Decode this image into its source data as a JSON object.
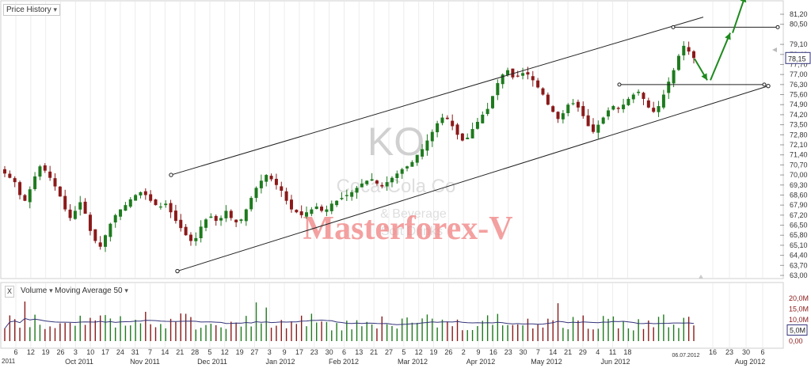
{
  "price_panel": {
    "title": "Price History"
  },
  "watermark": {
    "symbol": "KO",
    "company": "Coca-Cola Co",
    "sector_1": "& Beverage",
    "sector_2": "Soft Drinks",
    "brand": "Masterforex-V"
  },
  "volume_panel": {
    "close_symbol": "X",
    "title": "Volume",
    "indicator": "Moving Average 50"
  },
  "colors": {
    "up": "#1e7a1e",
    "down": "#8b1a1a",
    "accent_arrow": "#1e8a1e",
    "volume_ma": "#33337a",
    "price_box": "#33337a",
    "watermark_brand": "#f08080"
  },
  "chart_data": [
    {
      "type": "candlestick",
      "title": "Price History",
      "series_name": "KO",
      "y_ticks": [
        "81,20",
        "80,50",
        "79,10",
        "78,40",
        "77,70",
        "77,00",
        "76,30",
        "75,60",
        "74,90",
        "74,20",
        "73,50",
        "72,80",
        "72,10",
        "71,40",
        "70,70",
        "70,00",
        "69,30",
        "68,60",
        "67,90",
        "67,20",
        "66,50",
        "65,80",
        "65,10",
        "64,40",
        "63,70",
        "63,00"
      ],
      "ylim": [
        63.0,
        81.2
      ],
      "last_price": "78,15",
      "x_day_labels": [
        "6",
        "12",
        "19",
        "26",
        "3",
        "10",
        "17",
        "24",
        "31",
        "7",
        "14",
        "21",
        "28",
        "5",
        "12",
        "19",
        "27",
        "3",
        "9",
        "17",
        "23",
        "30",
        "6",
        "13",
        "21",
        "27",
        "5",
        "12",
        "19",
        "26",
        "2",
        "9",
        "16",
        "23",
        "30",
        "7",
        "14",
        "21",
        "29",
        "4",
        "11",
        "18",
        "16",
        "23",
        "30",
        "6"
      ],
      "x_day_label_current": "06.07.2012",
      "x_month_labels": [
        "Oct 2011",
        "Nov 2011",
        "Dec 2011",
        "Jan 2012",
        "Feb 2012",
        "Mar 2012",
        "Apr 2012",
        "May 2012",
        "Jun 2012",
        "Aug 2012"
      ],
      "x_start_label": "2011",
      "approx_close_path": [
        70.1,
        69.8,
        69.5,
        68.6,
        68.2,
        69.0,
        69.9,
        70.6,
        70.3,
        69.8,
        69.2,
        68.5,
        67.6,
        67.0,
        67.5,
        68.1,
        67.3,
        66.1,
        65.4,
        65.0,
        65.8,
        66.6,
        67.2,
        67.6,
        67.9,
        68.3,
        68.6,
        68.8,
        68.6,
        68.2,
        67.9,
        67.8,
        68.0,
        67.4,
        66.8,
        66.3,
        65.8,
        65.4,
        65.6,
        66.4,
        66.9,
        67.1,
        66.8,
        67.0,
        67.5,
        67.0,
        66.7,
        66.9,
        67.6,
        68.4,
        69.1,
        69.6,
        70.0,
        69.7,
        69.3,
        68.9,
        68.2,
        67.6,
        67.4,
        67.2,
        67.4,
        67.6,
        67.8,
        67.5,
        67.6,
        68.0,
        68.2,
        68.4,
        68.6,
        68.8,
        69.1,
        69.4,
        69.6,
        69.7,
        69.4,
        69.2,
        69.5,
        69.8,
        70.1,
        70.4,
        70.6,
        70.9,
        71.4,
        71.8,
        72.4,
        73.0,
        73.6,
        74.0,
        73.9,
        73.4,
        72.8,
        72.4,
        72.6,
        73.2,
        73.7,
        74.2,
        74.6,
        75.5,
        76.4,
        77.0,
        77.3,
        76.8,
        76.9,
        77.1,
        77.0,
        76.6,
        76.1,
        75.6,
        74.9,
        74.4,
        73.9,
        74.3,
        74.9,
        75.0,
        74.7,
        74.1,
        73.4,
        73.0,
        73.5,
        74.0,
        74.5,
        74.8,
        74.6,
        74.9,
        75.3,
        75.6,
        75.8,
        75.3,
        74.7,
        74.4,
        74.8,
        75.6,
        76.5,
        77.3,
        78.3,
        79.0,
        78.6,
        78.15
      ],
      "channel_upper": {
        "from": [
          "Nov 2011",
          70.0
        ],
        "to": [
          "Jul 2012",
          81.0
        ]
      },
      "channel_lower": {
        "from": [
          "Nov 2011",
          63.3
        ],
        "to": [
          "Jul 2012",
          76.2
        ]
      },
      "resistance_levels": [
        80.3,
        76.3
      ],
      "projection": [
        [
          78.1,
          76.6
        ],
        [
          76.6,
          79.9
        ],
        [
          79.9,
          82.5
        ]
      ]
    },
    {
      "type": "bar",
      "title": "Volume",
      "y_ticks": [
        "20,0M",
        "15,0M",
        "10,0M",
        "5,0M",
        "0,00"
      ],
      "ylim": [
        0,
        20
      ],
      "last_volume": "5,0M",
      "indicator": "Moving Average 50"
    }
  ]
}
